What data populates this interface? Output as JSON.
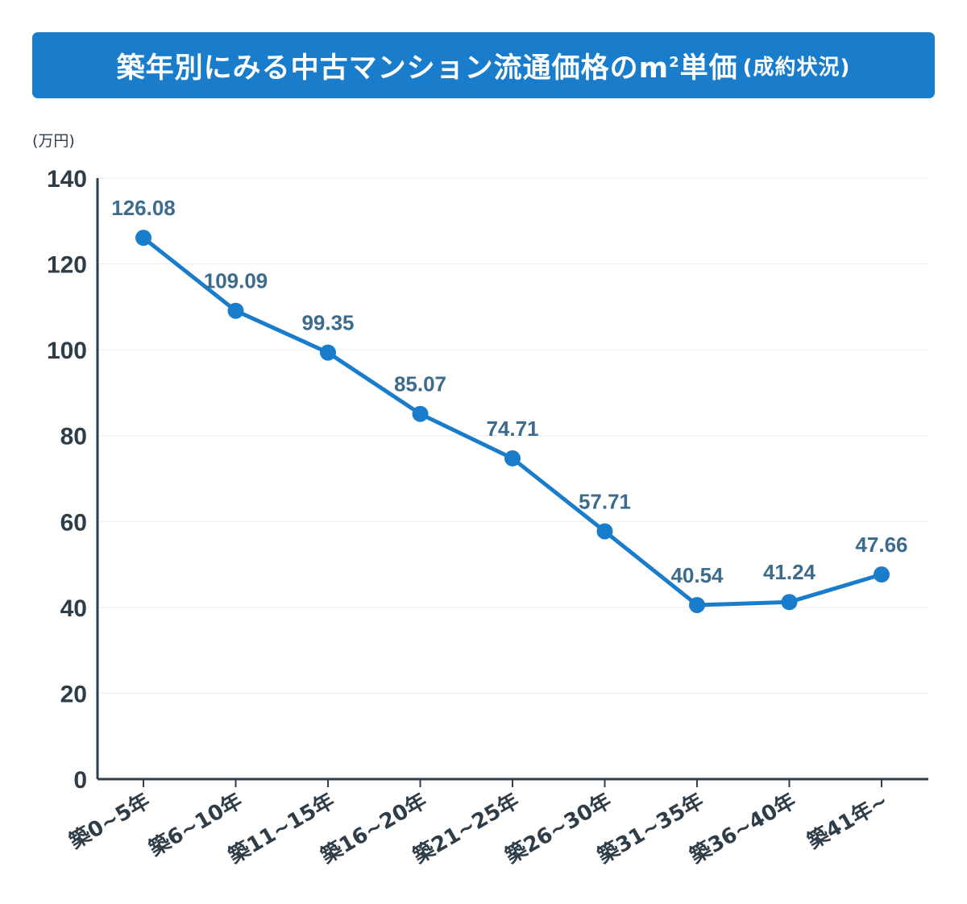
{
  "title": {
    "main": "築年別にみる中古マンション流通価格のm",
    "sup": "2",
    "after": "単価",
    "sub": "(成約状況)"
  },
  "colors": {
    "title_bg": "#1a7dcb",
    "line": "#1a7dcb",
    "data_label": "#3c6b8c",
    "axis": "#2e3d48"
  },
  "chart_data": {
    "type": "line",
    "title": "築年別にみる中古マンション流通価格のm²単価(成約状況)",
    "ylabel": "(万円)",
    "categories": [
      "築0~5年",
      "築6~10年",
      "築11~15年",
      "築16~20年",
      "築21~25年",
      "築26~30年",
      "築31~35年",
      "築36~40年",
      "築41年~"
    ],
    "values": [
      126.08,
      109.09,
      99.35,
      85.07,
      74.71,
      57.71,
      40.54,
      41.24,
      47.66
    ],
    "value_labels": [
      "126.08",
      "109.09",
      "99.35",
      "85.07",
      "74.71",
      "57.71",
      "40.54",
      "41.24",
      "47.66"
    ],
    "ylim": [
      0,
      140
    ],
    "yticks": [
      "0",
      "20",
      "40",
      "60",
      "80",
      "100",
      "120",
      "140"
    ],
    "grid": true,
    "legend": "none"
  }
}
